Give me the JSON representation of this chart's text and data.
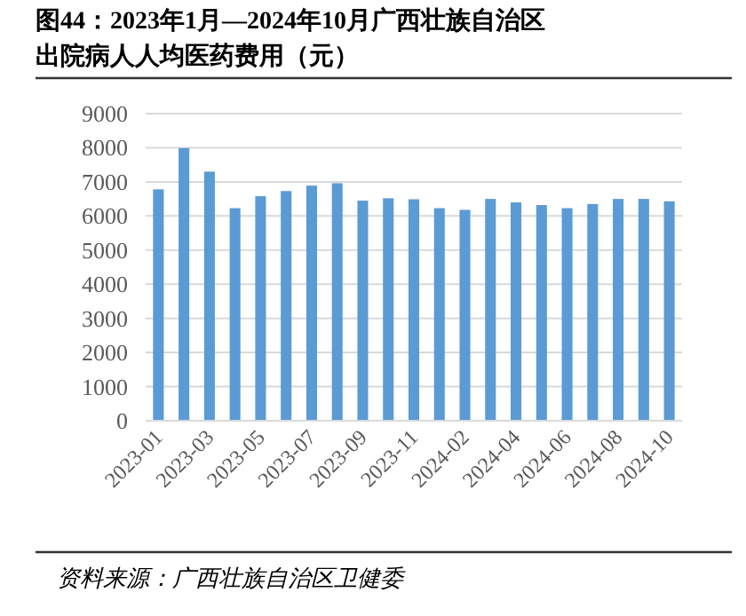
{
  "chart_data": {
    "type": "bar",
    "title": "图44：2023年1月—2024年10月广西壮族自治区出院病人人均医药费用（元）",
    "categories": [
      "2023-01",
      null,
      "2023-03",
      null,
      "2023-05",
      null,
      "2023-07",
      null,
      "2023-09",
      null,
      "2023-11",
      null,
      "2024-02",
      null,
      "2024-04",
      null,
      "2024-06",
      null,
      "2024-08",
      null,
      "2024-10"
    ],
    "values": [
      6780,
      7990,
      7300,
      6230,
      6580,
      6730,
      6890,
      6960,
      6450,
      6520,
      6490,
      6230,
      6180,
      6500,
      6400,
      6320,
      6230,
      6350,
      6500,
      6500,
      6430
    ],
    "color": "#5b9bd5",
    "ylim": [
      0,
      9000
    ],
    "yticks": [
      0,
      1000,
      2000,
      3000,
      4000,
      5000,
      6000,
      7000,
      8000,
      9000
    ],
    "grid": "y",
    "annotations": [
      "资料来源：广西壮族自治区卫健委"
    ]
  }
}
